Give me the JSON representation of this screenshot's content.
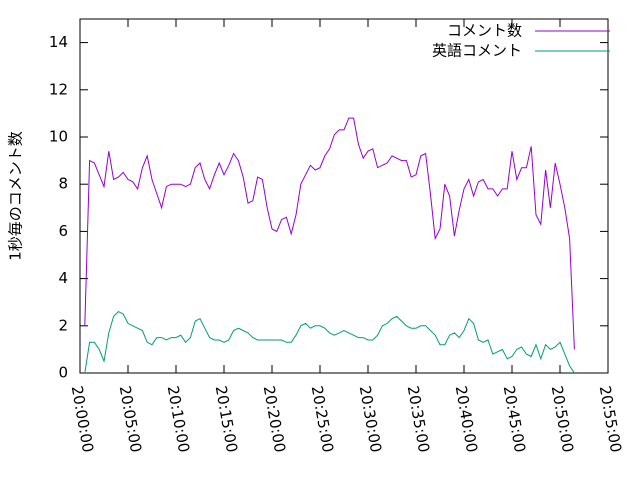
{
  "chart_data": {
    "type": "line",
    "y_label": "1秒毎のコメント数",
    "x": [
      "20:00:30",
      "20:01:00",
      "20:01:30",
      "20:02:00",
      "20:02:30",
      "20:03:00",
      "20:03:30",
      "20:04:00",
      "20:04:30",
      "20:05:00",
      "20:05:30",
      "20:06:00",
      "20:06:30",
      "20:07:00",
      "20:07:30",
      "20:08:00",
      "20:08:30",
      "20:09:00",
      "20:09:30",
      "20:10:00",
      "20:10:30",
      "20:11:00",
      "20:11:30",
      "20:12:00",
      "20:12:30",
      "20:13:00",
      "20:13:30",
      "20:14:00",
      "20:14:30",
      "20:15:00",
      "20:15:30",
      "20:16:00",
      "20:16:30",
      "20:17:00",
      "20:17:30",
      "20:18:00",
      "20:18:30",
      "20:19:00",
      "20:19:30",
      "20:20:00",
      "20:20:30",
      "20:21:00",
      "20:21:30",
      "20:22:00",
      "20:22:30",
      "20:23:00",
      "20:23:30",
      "20:24:00",
      "20:24:30",
      "20:25:00",
      "20:25:30",
      "20:26:00",
      "20:26:30",
      "20:27:00",
      "20:27:30",
      "20:28:00",
      "20:28:30",
      "20:29:00",
      "20:29:30",
      "20:30:00",
      "20:30:30",
      "20:31:00",
      "20:31:30",
      "20:32:00",
      "20:32:30",
      "20:33:00",
      "20:33:30",
      "20:34:00",
      "20:34:30",
      "20:35:00",
      "20:35:30",
      "20:36:00",
      "20:36:30",
      "20:37:00",
      "20:37:30",
      "20:38:00",
      "20:38:30",
      "20:39:00",
      "20:39:30",
      "20:40:00",
      "20:40:30",
      "20:41:00",
      "20:41:30",
      "20:42:00",
      "20:42:30",
      "20:43:00",
      "20:43:30",
      "20:44:00",
      "20:44:30",
      "20:45:00",
      "20:45:30",
      "20:46:00",
      "20:46:30",
      "20:47:00",
      "20:47:30",
      "20:48:00",
      "20:48:30",
      "20:49:00",
      "20:49:30",
      "20:50:00",
      "20:50:30",
      "20:51:00",
      "20:51:30"
    ],
    "series": [
      {
        "name": "コメント数",
        "color": "#9400d3",
        "values": [
          2.0,
          9.0,
          8.9,
          8.4,
          7.9,
          9.4,
          8.2,
          8.3,
          8.5,
          8.2,
          8.1,
          7.8,
          8.7,
          9.2,
          8.2,
          7.6,
          7.0,
          7.9,
          8.0,
          8.0,
          8.0,
          7.9,
          8.0,
          8.7,
          8.9,
          8.2,
          7.8,
          8.4,
          8.9,
          8.4,
          8.8,
          9.3,
          9.0,
          8.3,
          7.2,
          7.3,
          8.3,
          8.2,
          7.0,
          6.1,
          6.0,
          6.5,
          6.6,
          5.9,
          6.7,
          8.0,
          8.4,
          8.8,
          8.6,
          8.7,
          9.2,
          9.5,
          10.1,
          10.3,
          10.3,
          10.8,
          10.8,
          9.7,
          9.1,
          9.4,
          9.5,
          8.7,
          8.8,
          8.9,
          9.2,
          9.1,
          9.0,
          9.0,
          8.3,
          8.4,
          9.2,
          9.3,
          7.6,
          5.7,
          6.1,
          8.0,
          7.5,
          5.8,
          6.9,
          7.8,
          8.2,
          7.5,
          8.1,
          8.2,
          7.8,
          7.8,
          7.5,
          7.8,
          7.8,
          9.4,
          8.2,
          8.7,
          8.7,
          9.6,
          6.7,
          6.3,
          8.6,
          7.0,
          8.9,
          8.0,
          7.0,
          5.7,
          1.0
        ]
      },
      {
        "name": "英語コメント",
        "color": "#009e73",
        "values": [
          0.0,
          1.3,
          1.3,
          1.0,
          0.5,
          1.7,
          2.4,
          2.6,
          2.5,
          2.1,
          2.0,
          1.9,
          1.8,
          1.3,
          1.2,
          1.5,
          1.5,
          1.4,
          1.5,
          1.5,
          1.6,
          1.3,
          1.5,
          2.2,
          2.3,
          1.9,
          1.5,
          1.4,
          1.4,
          1.3,
          1.4,
          1.8,
          1.9,
          1.8,
          1.7,
          1.5,
          1.4,
          1.4,
          1.4,
          1.4,
          1.4,
          1.4,
          1.3,
          1.3,
          1.6,
          2.0,
          2.1,
          1.9,
          2.0,
          2.0,
          1.9,
          1.7,
          1.6,
          1.7,
          1.8,
          1.7,
          1.6,
          1.5,
          1.5,
          1.4,
          1.4,
          1.6,
          2.0,
          2.1,
          2.3,
          2.4,
          2.2,
          2.0,
          1.9,
          1.9,
          2.0,
          2.0,
          1.8,
          1.6,
          1.2,
          1.2,
          1.6,
          1.7,
          1.5,
          1.8,
          2.3,
          2.1,
          1.4,
          1.3,
          1.4,
          0.8,
          0.9,
          1.0,
          0.6,
          0.7,
          1.0,
          1.1,
          0.8,
          0.7,
          1.2,
          0.6,
          1.2,
          1.0,
          1.1,
          1.3,
          0.8,
          0.3,
          0.0
        ]
      }
    ],
    "xlim": [
      "20:00:00",
      "20:55:00"
    ],
    "xticks": [
      "20:00:00",
      "20:05:00",
      "20:10:00",
      "20:15:00",
      "20:20:00",
      "20:25:00",
      "20:30:00",
      "20:35:00",
      "20:40:00",
      "20:45:00",
      "20:50:00",
      "20:55:00"
    ],
    "ylim": [
      0,
      15
    ],
    "yticks": [
      0,
      2,
      4,
      6,
      8,
      10,
      12,
      14
    ],
    "legend": "top-right"
  }
}
